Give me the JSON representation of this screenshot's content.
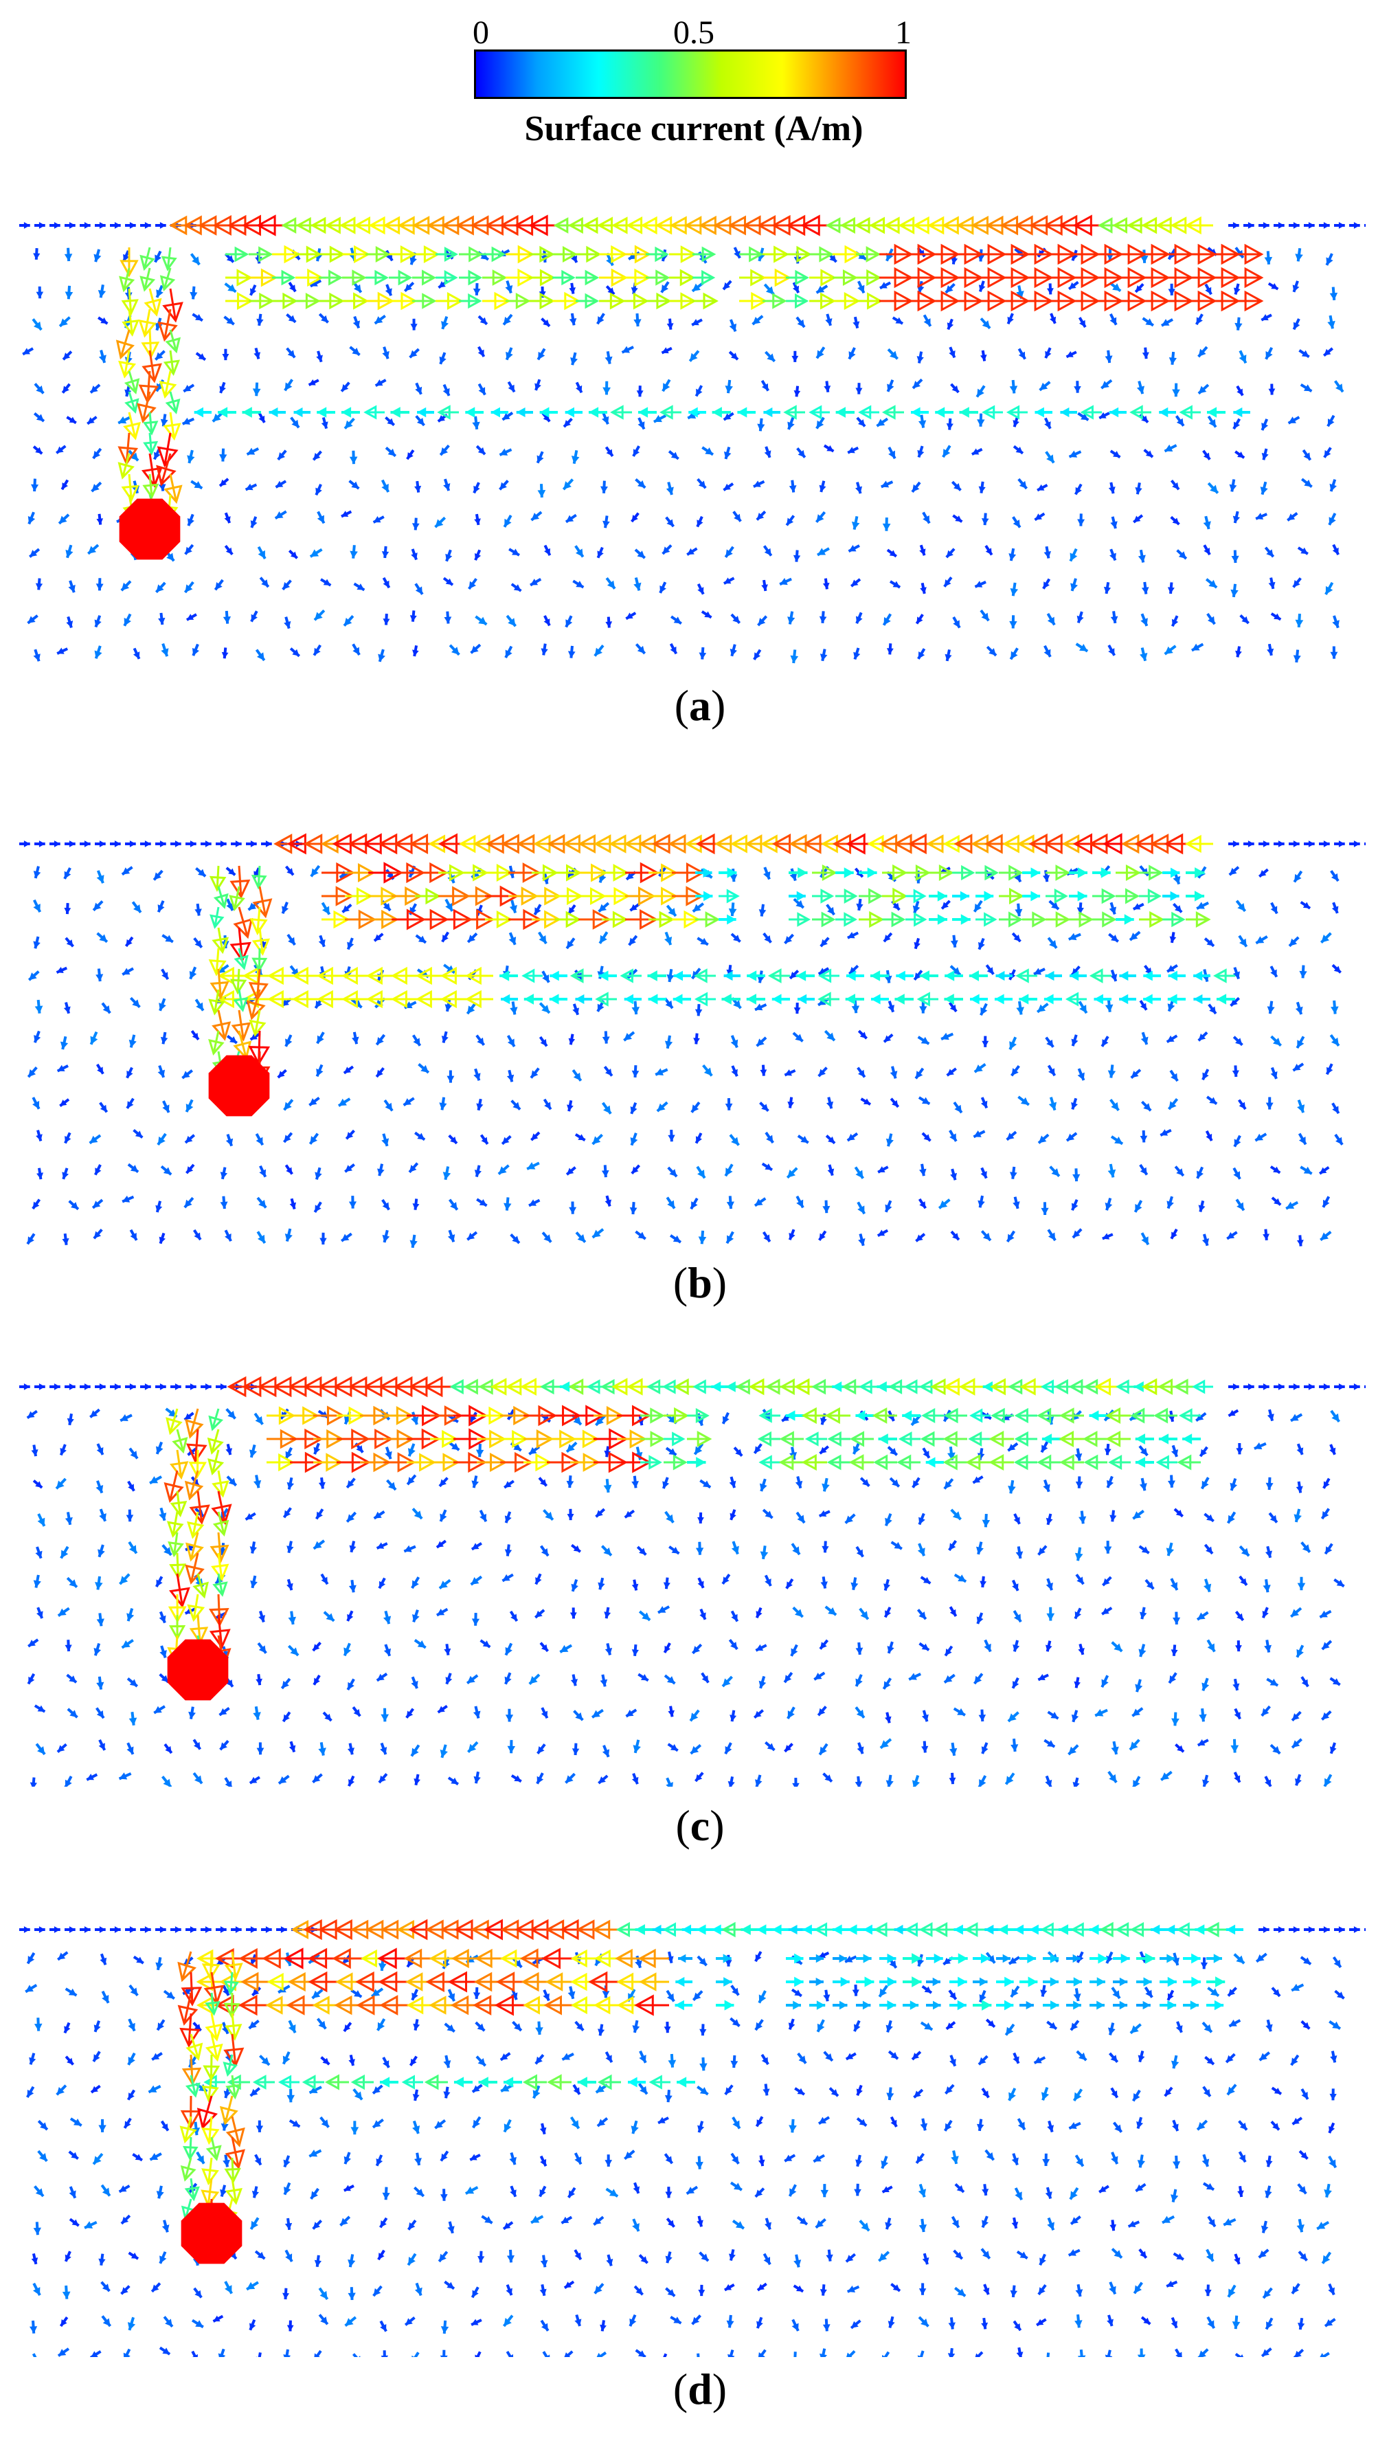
{
  "colorbar": {
    "tick_min": "0",
    "tick_mid": "0.5",
    "tick_max": "1",
    "title": "Surface current (A/m)",
    "stops": [
      "#0000ff",
      "#00a0ff",
      "#00ffff",
      "#40ff80",
      "#c0ff00",
      "#ffff00",
      "#ff8000",
      "#ff0000"
    ]
  },
  "panels": [
    {
      "id": "a",
      "caption_open": "(",
      "caption_letter": "a",
      "caption_close": ")"
    },
    {
      "id": "b",
      "caption_open": "(",
      "caption_letter": "b",
      "caption_close": ")"
    },
    {
      "id": "c",
      "caption_open": "(",
      "caption_letter": "c",
      "caption_close": ")"
    },
    {
      "id": "d",
      "caption_open": "(",
      "caption_letter": "d",
      "caption_close": ")"
    }
  ],
  "feed_color": "#ff0000"
}
